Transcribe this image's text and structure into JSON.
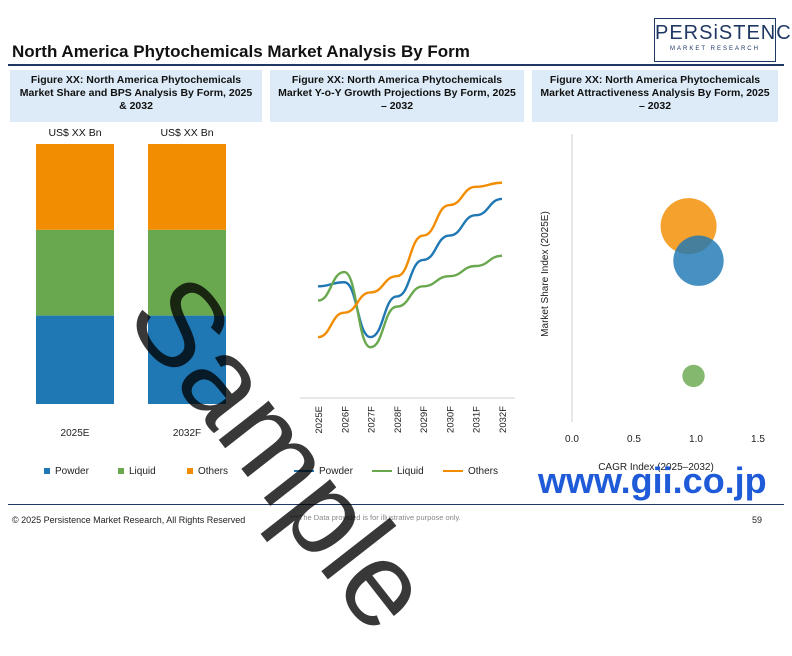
{
  "title": "North America Phytochemicals Market Analysis By Form",
  "logo": {
    "main": "PERSiSTENCE",
    "sub": "MARKET RESEARCH"
  },
  "panels": {
    "p1": "Figure XX: North America Phytochemicals Market Share and BPS Analysis By Form, 2025 & 2032",
    "p2": "Figure XX: North America Phytochemicals Market Y-o-Y Growth Projections By Form, 2025 – 2032",
    "p3": "Figure XX: North America Phytochemicals Market Attractiveness Analysis By Form, 2025 – 2032"
  },
  "colors": {
    "powder": "#1f77b4",
    "liquid": "#6aa84f",
    "others": "#f28c00",
    "header_bg": "#dcebf7",
    "accent": "#1f3864"
  },
  "chart_data": [
    {
      "type": "bar",
      "stacked": true,
      "categories": [
        "2025E",
        "2032F"
      ],
      "bar_labels": [
        "US$ XX Bn",
        "US$ XX Bn"
      ],
      "series": [
        {
          "name": "Powder",
          "values": [
            0.34,
            0.34
          ]
        },
        {
          "name": "Liquid",
          "values": [
            0.33,
            0.33
          ]
        },
        {
          "name": "Others",
          "values": [
            0.33,
            0.33
          ]
        }
      ],
      "legend": "bottom"
    },
    {
      "type": "line",
      "x": [
        "2025E",
        "2026F",
        "2027F",
        "2028F",
        "2029F",
        "2030F",
        "2031F",
        "2032F"
      ],
      "series": [
        {
          "name": "Powder",
          "values": [
            0.55,
            0.57,
            0.3,
            0.5,
            0.68,
            0.8,
            0.9,
            0.98
          ]
        },
        {
          "name": "Liquid",
          "values": [
            0.48,
            0.62,
            0.25,
            0.45,
            0.55,
            0.6,
            0.65,
            0.7
          ]
        },
        {
          "name": "Others",
          "values": [
            0.3,
            0.42,
            0.52,
            0.6,
            0.8,
            0.95,
            1.04,
            1.06
          ]
        }
      ],
      "ylim": [
        0,
        1.3
      ],
      "legend": "bottom"
    },
    {
      "type": "scatter",
      "xlabel": "CAGR Index (2025–2032)",
      "ylabel": "Market Share Index (2025E)",
      "xticks": [
        "0.0",
        "0.5",
        "1.0",
        "1.5"
      ],
      "xlim": [
        0,
        1.5
      ],
      "ylim": [
        0,
        1.5
      ],
      "points": [
        {
          "name": "Others",
          "x": 0.94,
          "y": 1.02,
          "size": 1.0
        },
        {
          "name": "Powder",
          "x": 1.02,
          "y": 0.84,
          "size": 0.9
        },
        {
          "name": "Liquid",
          "x": 0.98,
          "y": 0.24,
          "size": 0.4
        }
      ]
    }
  ],
  "legend_labels": {
    "powder": "Powder",
    "liquid": "Liquid",
    "others": "Others"
  },
  "watermark": "Sample",
  "watermark2": "www.gii.co.jp",
  "footer": {
    "copyright": "© 2025 Persistence Market Research, All Rights Reserved",
    "note": "***The Data provided is for illustrative purpose only.",
    "page": "59"
  }
}
